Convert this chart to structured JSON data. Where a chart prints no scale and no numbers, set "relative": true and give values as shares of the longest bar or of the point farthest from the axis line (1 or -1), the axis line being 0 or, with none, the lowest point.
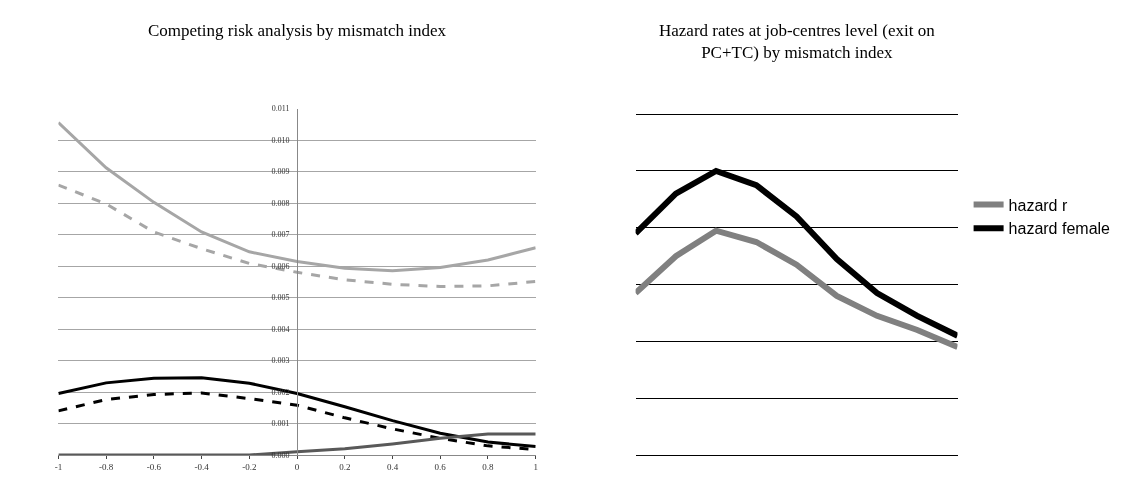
{
  "chart_data": [
    {
      "type": "line",
      "title": "Competing risk analysis by mismatch index",
      "x": [
        -1,
        -0.8,
        -0.6,
        -0.4,
        -0.2,
        0,
        0.2,
        0.4,
        0.6,
        0.8,
        1
      ],
      "xlim": [
        -1,
        1
      ],
      "xticks": [
        -1,
        -0.8,
        -0.6,
        -0.4,
        -0.2,
        0,
        0.2,
        0.4,
        0.6,
        0.8,
        1
      ],
      "ylim": [
        0,
        0.011
      ],
      "yticks": [
        {
          "value": 0,
          "label": "0.000"
        },
        {
          "value": 0.001,
          "label": "0.001"
        },
        {
          "value": 0.002,
          "label": "0.002"
        },
        {
          "value": 0.003,
          "label": "0.003"
        },
        {
          "value": 0.004,
          "label": "0.004"
        },
        {
          "value": 0.005,
          "label": "0.005"
        },
        {
          "value": 0.006,
          "label": "0.006"
        },
        {
          "value": 0.007,
          "label": "0.007"
        },
        {
          "value": 0.008,
          "label": "0.008"
        },
        {
          "value": 0.009,
          "label": "0.009"
        },
        {
          "value": 0.01,
          "label": "0.010"
        },
        {
          "value": 0.011,
          "label": "0.011"
        }
      ],
      "grid": "y",
      "marker": "none",
      "series": [
        {
          "color": "#a6a6a6",
          "line_style": "solid",
          "values": [
            0.01055,
            0.00912,
            0.00802,
            0.00708,
            0.00645,
            0.00614,
            0.00593,
            0.00585,
            0.00595,
            0.00619,
            0.00658
          ]
        },
        {
          "color": "#a6a6a6",
          "line_style": "dashed",
          "values": [
            0.00857,
            0.00797,
            0.00708,
            0.00655,
            0.00608,
            0.0058,
            0.00556,
            0.00542,
            0.00535,
            0.00537,
            0.00551
          ]
        },
        {
          "color": "#000000",
          "line_style": "solid",
          "values": [
            0.00195,
            0.00229,
            0.00244,
            0.00245,
            0.00228,
            0.00195,
            0.00153,
            0.00109,
            0.00069,
            0.00041,
            0.00027
          ]
        },
        {
          "color": "#000000",
          "line_style": "dashed",
          "values": [
            0.0014,
            0.00176,
            0.00192,
            0.00197,
            0.00179,
            0.00158,
            0.00118,
            0.00083,
            0.00053,
            0.00029,
            0.00017
          ]
        },
        {
          "color": "#595959",
          "line_style": "solid",
          "values": [
            0,
            0,
            0,
            0,
            0,
            0.0001,
            0.0002,
            0.00035,
            0.00053,
            0.00067,
            0.00067
          ]
        }
      ]
    },
    {
      "type": "line",
      "title": "Hazard rates at job-centres level (exit on PC+TC) by mismatch index",
      "relative": true,
      "categories": [
        null,
        null,
        null,
        null,
        null,
        null,
        null,
        null,
        null
      ],
      "grid": "y",
      "legend": "right",
      "marker": "none",
      "series": [
        {
          "name": "hazard r",
          "color": "#808080",
          "values": [
            0.57,
            0.7,
            0.79,
            0.75,
            0.67,
            0.56,
            0.49,
            0.44,
            0.38
          ]
        },
        {
          "name": "hazard female",
          "color": "#000000",
          "values": [
            0.78,
            0.92,
            1.0,
            0.95,
            0.84,
            0.69,
            0.57,
            0.49,
            0.42
          ]
        }
      ]
    }
  ]
}
